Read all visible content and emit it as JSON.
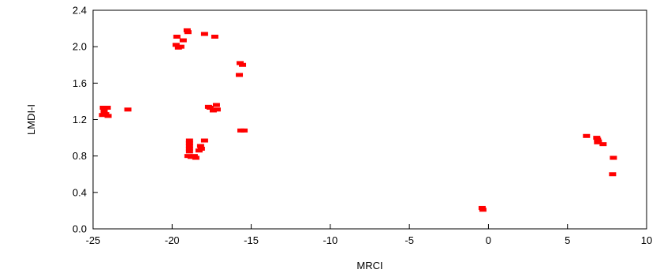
{
  "chart_data": {
    "type": "scatter",
    "xlabel": "MRCI",
    "ylabel": "LMDI-I",
    "xlim": [
      -25,
      10
    ],
    "ylim": [
      0.0,
      2.4
    ],
    "xticks": [
      -25,
      -20,
      -15,
      -10,
      -5,
      0,
      5,
      10
    ],
    "yticks": [
      0.0,
      0.4,
      0.8,
      1.2,
      1.6,
      2.0,
      2.4
    ],
    "ytick_labels": [
      "0.0",
      "0.4",
      "0.8",
      "1.2",
      "1.6",
      "2.0",
      "2.4"
    ],
    "grid": false,
    "marker_color": "#ff0000",
    "points": [
      {
        "x": -24.35,
        "y": 1.33
      },
      {
        "x": -24.1,
        "y": 1.33
      },
      {
        "x": -24.3,
        "y": 1.29
      },
      {
        "x": -24.2,
        "y": 1.26
      },
      {
        "x": -24.4,
        "y": 1.25
      },
      {
        "x": -24.05,
        "y": 1.24
      },
      {
        "x": -22.8,
        "y": 1.31
      },
      {
        "x": -19.7,
        "y": 2.11
      },
      {
        "x": -19.75,
        "y": 2.02
      },
      {
        "x": -19.6,
        "y": 1.99
      },
      {
        "x": -19.45,
        "y": 2.0
      },
      {
        "x": -19.3,
        "y": 2.07
      },
      {
        "x": -19.05,
        "y": 2.18
      },
      {
        "x": -19.0,
        "y": 2.16
      },
      {
        "x": -17.95,
        "y": 2.14
      },
      {
        "x": -17.3,
        "y": 2.11
      },
      {
        "x": -15.7,
        "y": 1.82
      },
      {
        "x": -15.55,
        "y": 1.8
      },
      {
        "x": -15.75,
        "y": 1.69
      },
      {
        "x": -17.7,
        "y": 1.34
      },
      {
        "x": -17.6,
        "y": 1.33
      },
      {
        "x": -17.4,
        "y": 1.3
      },
      {
        "x": -17.2,
        "y": 1.36
      },
      {
        "x": -17.15,
        "y": 1.31
      },
      {
        "x": -15.65,
        "y": 1.08
      },
      {
        "x": -15.45,
        "y": 1.08
      },
      {
        "x": -18.9,
        "y": 0.97
      },
      {
        "x": -18.9,
        "y": 0.94
      },
      {
        "x": -18.9,
        "y": 0.91
      },
      {
        "x": -18.9,
        "y": 0.88
      },
      {
        "x": -18.9,
        "y": 0.85
      },
      {
        "x": -19.0,
        "y": 0.8
      },
      {
        "x": -18.8,
        "y": 0.79
      },
      {
        "x": -18.6,
        "y": 0.8
      },
      {
        "x": -18.5,
        "y": 0.78
      },
      {
        "x": -18.2,
        "y": 0.91
      },
      {
        "x": -18.15,
        "y": 0.88
      },
      {
        "x": -18.3,
        "y": 0.86
      },
      {
        "x": -17.95,
        "y": 0.97
      },
      {
        "x": -0.4,
        "y": 0.23
      },
      {
        "x": -0.35,
        "y": 0.21
      },
      {
        "x": 6.2,
        "y": 1.02
      },
      {
        "x": 6.85,
        "y": 1.0
      },
      {
        "x": 6.9,
        "y": 0.98
      },
      {
        "x": 6.95,
        "y": 0.96
      },
      {
        "x": 6.9,
        "y": 0.95
      },
      {
        "x": 7.25,
        "y": 0.93
      },
      {
        "x": 7.9,
        "y": 0.78
      },
      {
        "x": 7.85,
        "y": 0.6
      }
    ]
  }
}
